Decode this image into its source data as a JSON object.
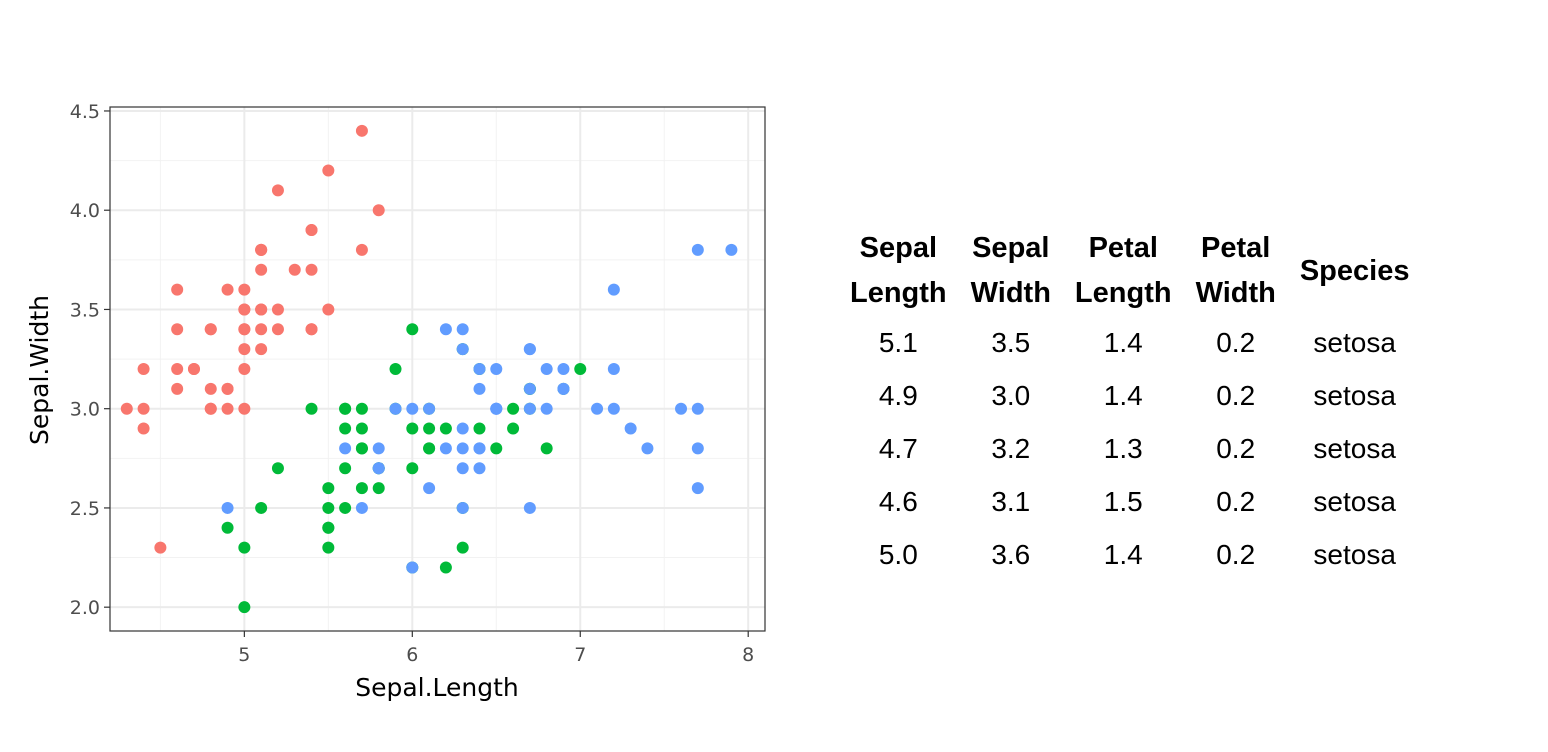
{
  "chart_data": {
    "type": "scatter",
    "xlabel": "Sepal.Length",
    "ylabel": "Sepal.Width",
    "xlim": [
      4.2,
      8.1
    ],
    "ylim": [
      1.88,
      4.52
    ],
    "x_ticks": [
      5,
      6,
      7,
      8
    ],
    "y_ticks": [
      2.0,
      2.5,
      3.0,
      3.5,
      4.0,
      4.5
    ],
    "x_tick_labels": [
      "5",
      "6",
      "7",
      "8"
    ],
    "y_tick_labels": [
      "2.0",
      "2.5",
      "3.0",
      "3.5",
      "4.0",
      "4.5"
    ],
    "grid": true,
    "legend": "none",
    "series": [
      {
        "color": "#F8766D",
        "x": [
          5.1,
          4.9,
          4.7,
          4.6,
          5.0,
          5.4,
          4.6,
          5.0,
          4.4,
          4.9,
          5.4,
          4.8,
          4.8,
          4.3,
          5.8,
          5.7,
          5.4,
          5.1,
          5.7,
          5.1,
          5.4,
          5.1,
          4.6,
          5.1,
          4.8,
          5.0,
          5.0,
          5.2,
          5.2,
          4.7,
          4.8,
          5.4,
          5.2,
          5.5,
          4.9,
          5.0,
          5.5,
          4.9,
          4.4,
          5.1,
          5.0,
          4.5,
          4.4,
          5.0,
          5.1,
          4.8,
          5.1,
          4.6,
          5.3,
          5.0
        ],
        "y": [
          3.5,
          3.0,
          3.2,
          3.1,
          3.6,
          3.9,
          3.4,
          3.4,
          2.9,
          3.1,
          3.7,
          3.4,
          3.0,
          3.0,
          4.0,
          4.4,
          3.9,
          3.5,
          3.8,
          3.8,
          3.4,
          3.7,
          3.6,
          3.3,
          3.4,
          3.0,
          3.4,
          3.5,
          3.4,
          3.2,
          3.1,
          3.4,
          4.1,
          4.2,
          3.1,
          3.2,
          3.5,
          3.6,
          3.0,
          3.4,
          3.5,
          2.3,
          3.2,
          3.5,
          3.8,
          3.0,
          3.8,
          3.2,
          3.7,
          3.3
        ]
      },
      {
        "color": "#00BA38",
        "x": [
          7.0,
          6.4,
          6.9,
          5.5,
          6.5,
          5.7,
          6.3,
          4.9,
          6.6,
          5.2,
          5.0,
          5.9,
          6.0,
          6.1,
          5.6,
          6.7,
          5.6,
          5.8,
          6.2,
          5.6,
          5.9,
          6.1,
          6.3,
          6.1,
          6.4,
          6.6,
          6.8,
          6.7,
          6.0,
          5.7,
          5.5,
          5.5,
          5.8,
          6.0,
          5.4,
          6.0,
          6.7,
          6.3,
          5.6,
          5.5,
          5.5,
          6.1,
          5.8,
          5.0,
          5.6,
          5.7,
          5.7,
          6.2,
          5.1,
          5.7
        ],
        "y": [
          3.2,
          3.2,
          3.1,
          2.3,
          2.8,
          2.8,
          3.3,
          2.4,
          2.9,
          2.7,
          2.0,
          3.0,
          2.2,
          2.9,
          2.9,
          3.1,
          3.0,
          2.7,
          2.2,
          2.5,
          3.2,
          2.8,
          2.5,
          2.8,
          2.9,
          3.0,
          2.8,
          3.0,
          2.9,
          2.6,
          2.4,
          2.4,
          2.7,
          2.7,
          3.0,
          3.4,
          3.1,
          2.3,
          3.0,
          2.5,
          2.6,
          3.0,
          2.6,
          2.3,
          2.7,
          3.0,
          2.9,
          2.9,
          2.5,
          2.8
        ]
      },
      {
        "color": "#619CFF",
        "x": [
          6.3,
          5.8,
          7.1,
          6.3,
          6.5,
          7.6,
          4.9,
          7.3,
          6.7,
          7.2,
          6.5,
          6.4,
          6.8,
          5.7,
          5.8,
          6.4,
          6.5,
          7.7,
          7.7,
          6.0,
          6.9,
          5.6,
          7.7,
          6.3,
          6.7,
          7.2,
          6.2,
          6.1,
          6.4,
          7.2,
          7.4,
          7.9,
          6.4,
          6.3,
          6.1,
          7.7,
          6.3,
          6.4,
          6.0,
          6.9,
          6.7,
          6.9,
          5.8,
          6.8,
          6.7,
          6.7,
          6.3,
          6.5,
          6.2,
          5.9
        ],
        "y": [
          3.3,
          2.7,
          3.0,
          2.9,
          3.0,
          3.0,
          2.5,
          2.9,
          2.5,
          3.6,
          3.2,
          2.7,
          3.0,
          2.5,
          2.8,
          3.2,
          3.0,
          3.8,
          2.6,
          2.2,
          3.2,
          2.8,
          2.8,
          2.7,
          3.3,
          3.2,
          2.8,
          3.0,
          2.8,
          3.0,
          2.8,
          3.8,
          2.8,
          2.8,
          2.6,
          3.0,
          3.4,
          3.1,
          3.0,
          3.1,
          3.1,
          3.1,
          2.7,
          3.2,
          3.3,
          3.0,
          2.5,
          3.0,
          3.4,
          3.0
        ]
      }
    ]
  },
  "table": {
    "headers": [
      {
        "line1": "Sepal",
        "line2": "Length"
      },
      {
        "line1": "Sepal",
        "line2": "Width"
      },
      {
        "line1": "Petal",
        "line2": "Length"
      },
      {
        "line1": "Petal",
        "line2": "Width"
      },
      {
        "line1": "Species",
        "line2": ""
      }
    ],
    "rows": [
      [
        "5.1",
        "3.5",
        "1.4",
        "0.2",
        "setosa"
      ],
      [
        "4.9",
        "3.0",
        "1.4",
        "0.2",
        "setosa"
      ],
      [
        "4.7",
        "3.2",
        "1.3",
        "0.2",
        "setosa"
      ],
      [
        "4.6",
        "3.1",
        "1.5",
        "0.2",
        "setosa"
      ],
      [
        "5.0",
        "3.6",
        "1.4",
        "0.2",
        "setosa"
      ]
    ]
  }
}
